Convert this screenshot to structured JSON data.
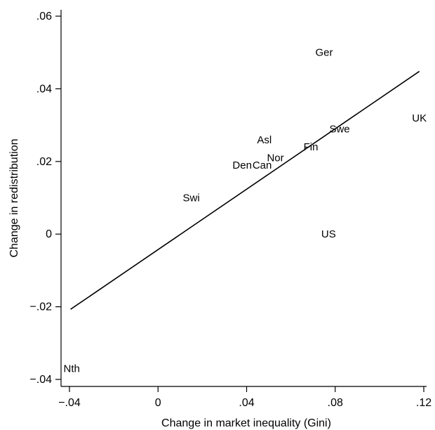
{
  "chart_data": {
    "type": "scatter",
    "xlabel": "Change in market inequality (Gini)",
    "ylabel": "Change in redistribution",
    "xlim": [
      -0.04,
      0.12
    ],
    "ylim": [
      -0.04,
      0.06
    ],
    "x_ticks": [
      {
        "value": -0.04,
        "label": "-.04"
      },
      {
        "value": 0,
        "label": "0"
      },
      {
        "value": 0.04,
        "label": ".04"
      },
      {
        "value": 0.08,
        "label": ".08"
      },
      {
        "value": 0.12,
        "label": ".12"
      }
    ],
    "y_ticks": [
      {
        "value": -0.04,
        "label": "-.04"
      },
      {
        "value": -0.02,
        "label": "-.02"
      },
      {
        "value": 0,
        "label": "0"
      },
      {
        "value": 0.02,
        "label": ".02"
      },
      {
        "value": 0.04,
        "label": ".04"
      },
      {
        "value": 0.06,
        "label": ".06"
      }
    ],
    "points": [
      {
        "label": "Ger",
        "x": 0.075,
        "y": 0.05
      },
      {
        "label": "UK",
        "x": 0.118,
        "y": 0.032
      },
      {
        "label": "Swe",
        "x": 0.082,
        "y": 0.029
      },
      {
        "label": "Asl",
        "x": 0.048,
        "y": 0.026
      },
      {
        "label": "Fin",
        "x": 0.069,
        "y": 0.024
      },
      {
        "label": "Nor",
        "x": 0.053,
        "y": 0.021
      },
      {
        "label": "Can",
        "x": 0.047,
        "y": 0.019
      },
      {
        "label": "Den",
        "x": 0.038,
        "y": 0.019
      },
      {
        "label": "Swi",
        "x": 0.015,
        "y": 0.01
      },
      {
        "label": "US",
        "x": 0.077,
        "y": 0.0
      },
      {
        "label": "Nth",
        "x": -0.039,
        "y": -0.037
      }
    ],
    "fit_line": {
      "x": [
        -0.0395,
        0.118
      ],
      "y": [
        -0.0207,
        0.0448
      ]
    },
    "grid": false,
    "legend": "none"
  }
}
